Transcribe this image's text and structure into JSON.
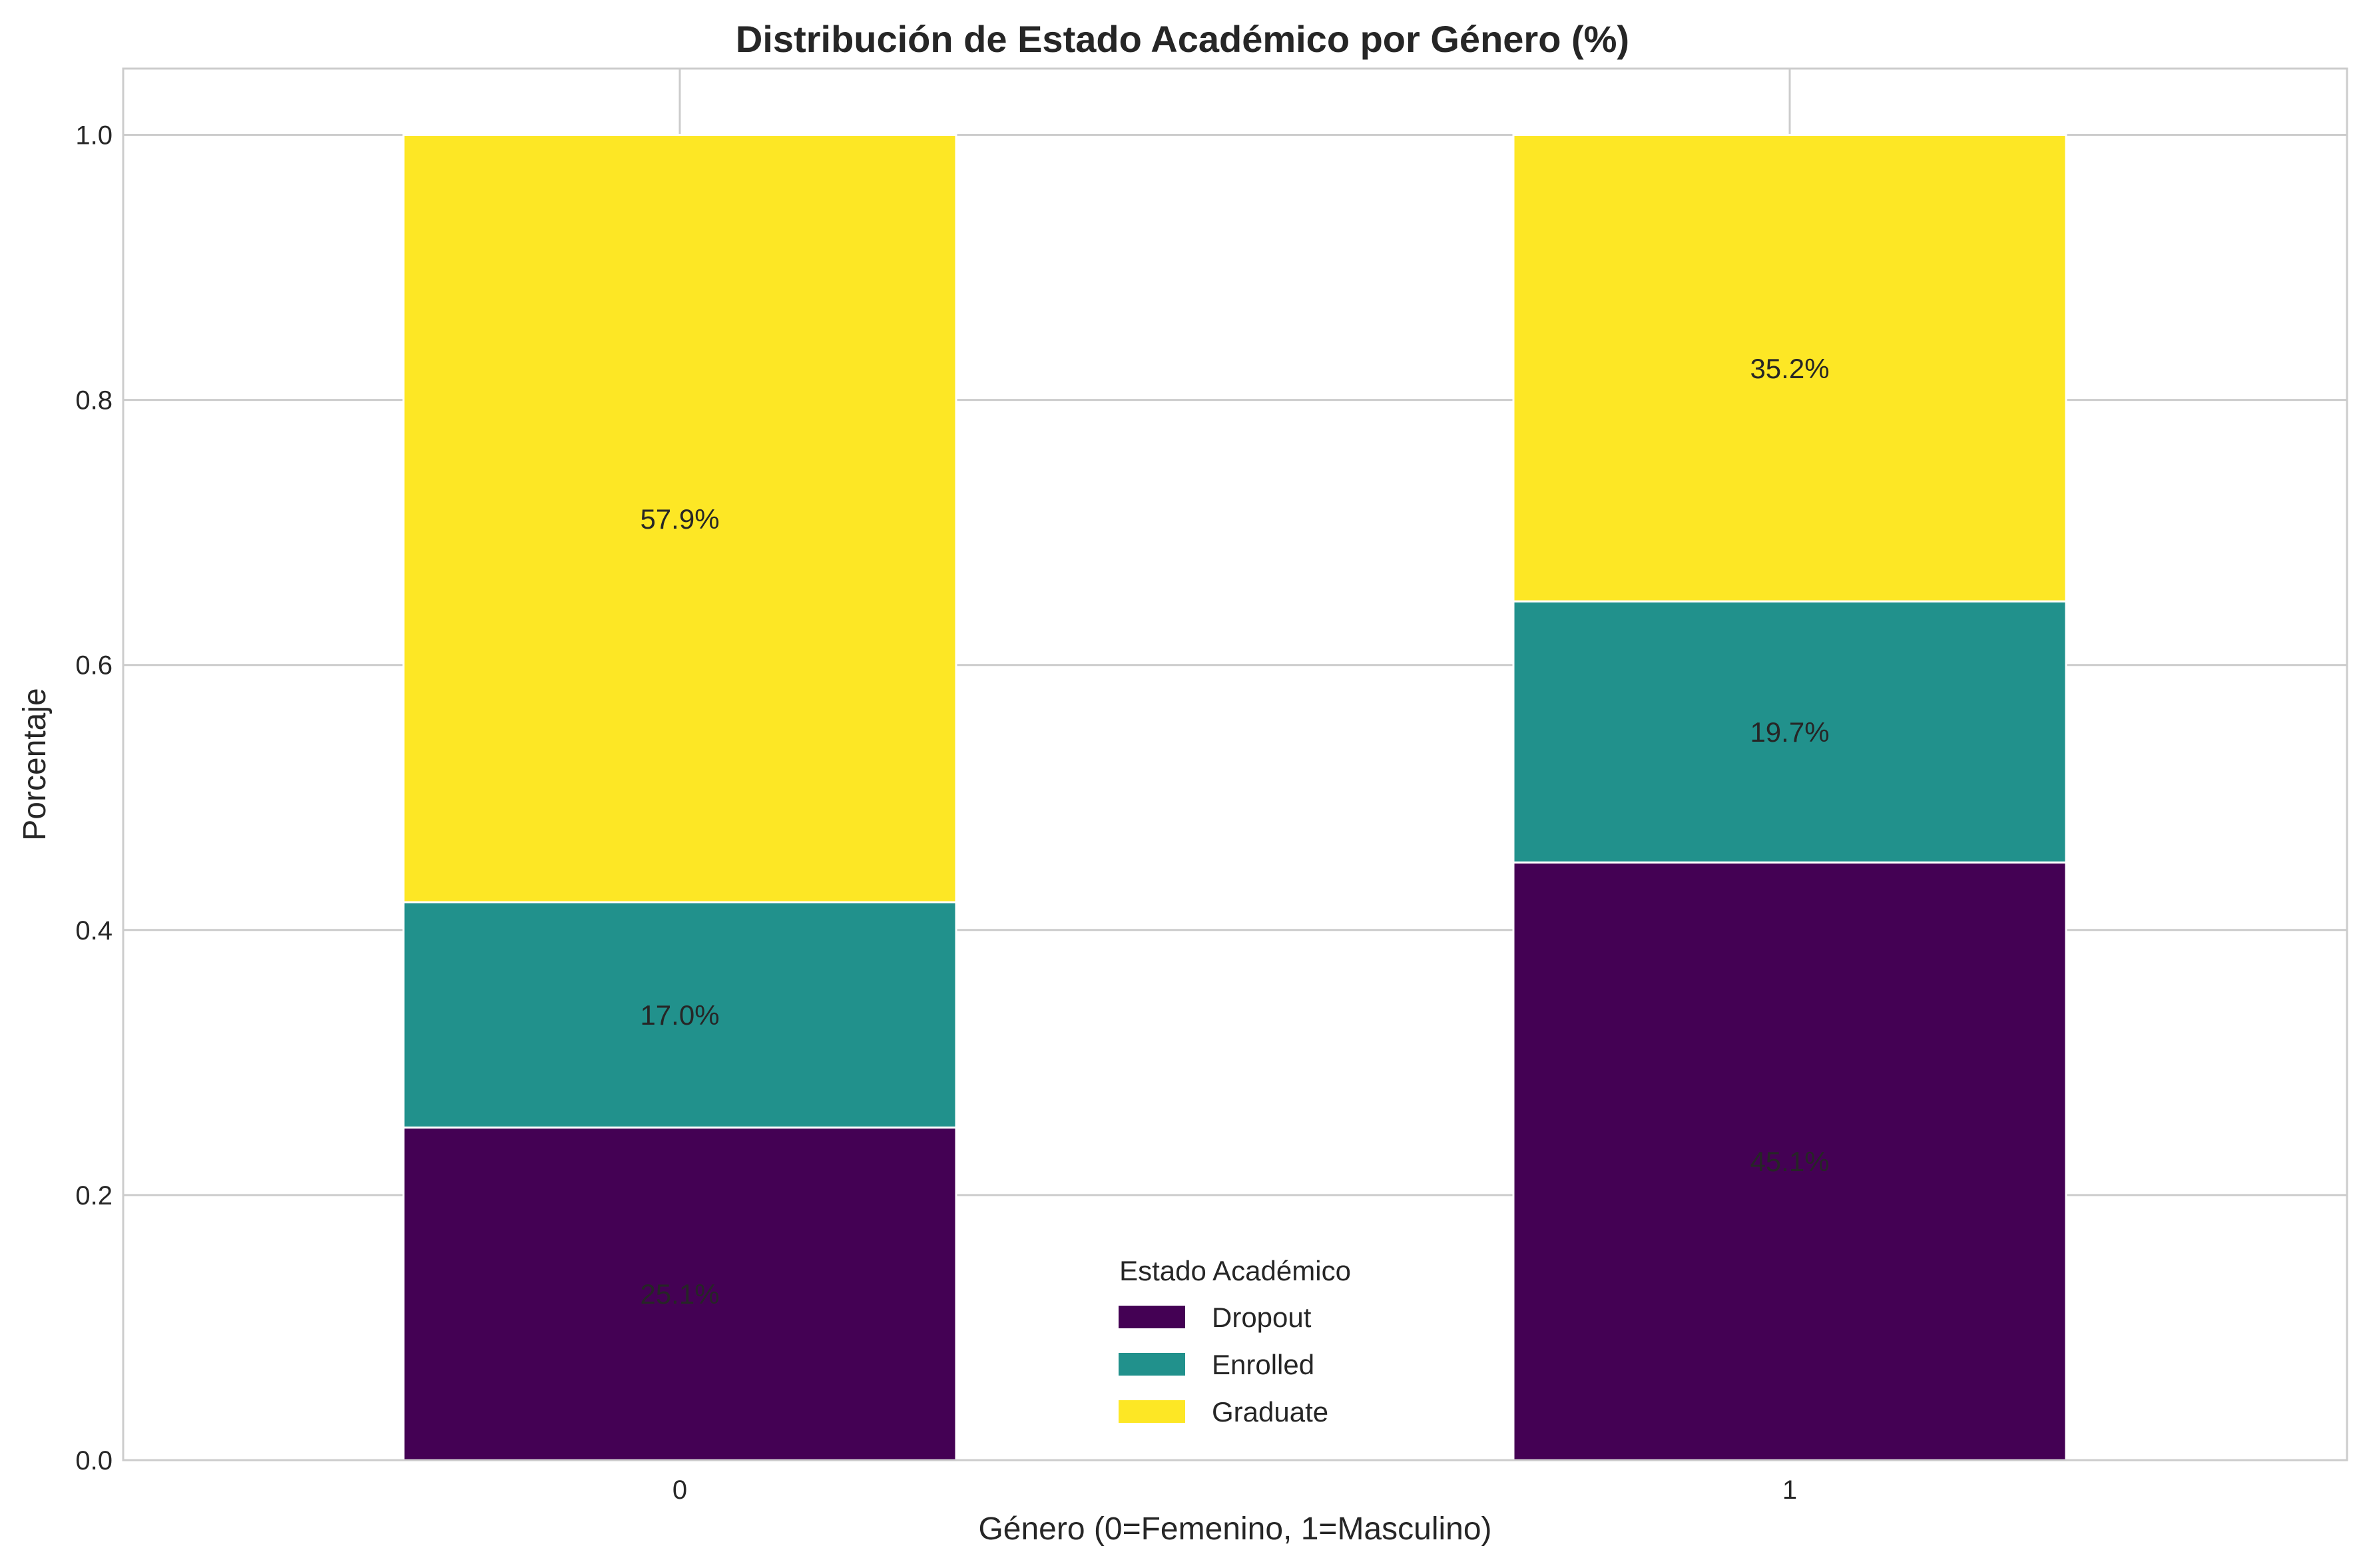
{
  "chart_data": {
    "type": "bar",
    "stacked": true,
    "title": "Distribución de Estado Académico por Género (%)",
    "xlabel": "Género (0=Femenino, 1=Masculino)",
    "ylabel": "Porcentaje",
    "categories": [
      "0",
      "1"
    ],
    "ylim": [
      0,
      1.05
    ],
    "yticks": [
      "0.0",
      "0.2",
      "0.4",
      "0.6",
      "0.8",
      "1.0"
    ],
    "grid": true,
    "legend": {
      "title": "Estado Académico",
      "placement": "bottom-center"
    },
    "series": [
      {
        "name": "Dropout",
        "color": "#440154",
        "values": [
          0.251,
          0.451
        ],
        "labels": [
          "25.1%",
          "45.1%"
        ]
      },
      {
        "name": "Enrolled",
        "color": "#21918c",
        "values": [
          0.17,
          0.197
        ],
        "labels": [
          "17.0%",
          "19.7%"
        ]
      },
      {
        "name": "Graduate",
        "color": "#fde725",
        "values": [
          0.579,
          0.352
        ],
        "labels": [
          "57.9%",
          "35.2%"
        ]
      }
    ]
  }
}
